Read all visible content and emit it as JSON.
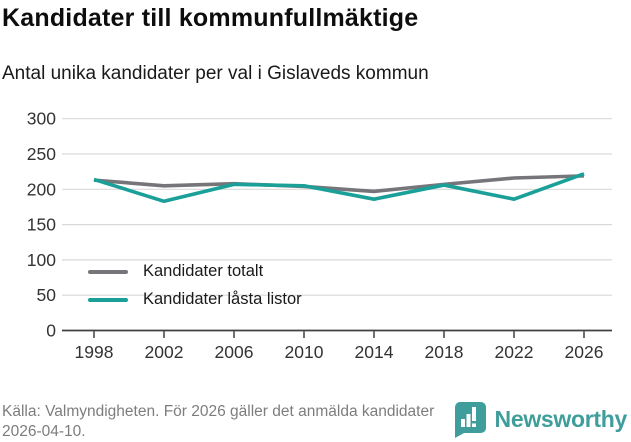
{
  "header": {
    "title": "Kandidater till kommunfullmäktige",
    "subtitle": "Antal unika kandidater per val i Gislaveds kommun"
  },
  "chart_data": {
    "type": "line",
    "categories": [
      "1998",
      "2002",
      "2006",
      "2010",
      "2014",
      "2018",
      "2022",
      "2026"
    ],
    "series": [
      {
        "name": "Kandidater totalt",
        "color": "#76767a",
        "values": [
          213,
          205,
          208,
          204,
          197,
          207,
          216,
          219
        ]
      },
      {
        "name": "Kandidater låsta listor",
        "color": "#1aa098",
        "values": [
          214,
          183,
          207,
          205,
          186,
          206,
          186,
          222
        ]
      }
    ],
    "title": "Kandidater till kommunfullmäktige",
    "subtitle": "Antal unika kandidater per val i Gislaveds kommun",
    "xlabel": "",
    "ylabel": "",
    "ylim": [
      0,
      300
    ],
    "yticks": [
      0,
      50,
      100,
      150,
      200,
      250,
      300
    ],
    "grid": true,
    "legend_position": "inside bottom-left"
  },
  "footer": {
    "source": "Källa: Valmyndigheten. För 2026 gäller det anmälda kandidater 2026-04-10.",
    "brand": "Newsworthy"
  },
  "colors": {
    "accent_teal": "#1aa098",
    "line_gray": "#76767a",
    "gridline": "#d9d9d9",
    "axis": "#404040",
    "tick_label": "#333333",
    "footer_text": "#7d7d7d",
    "logo_teal": "#3f9e9b"
  }
}
